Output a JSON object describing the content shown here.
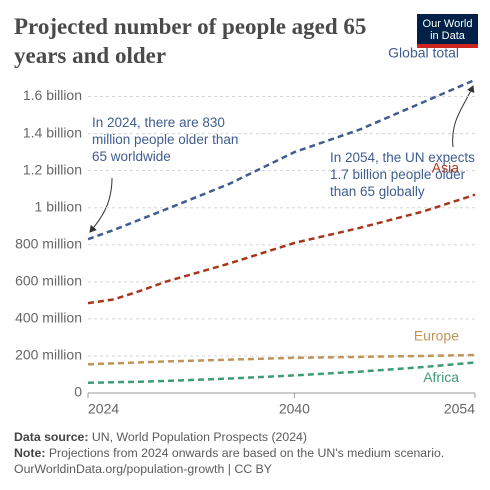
{
  "chart_data": {
    "type": "line",
    "title": "Projected number of people aged 65 years and older",
    "logo": [
      "Our World",
      "in Data"
    ],
    "x": [
      2024,
      2026,
      2028,
      2030,
      2035,
      2040,
      2045,
      2050,
      2054
    ],
    "xlim": [
      2024,
      2054
    ],
    "xticks": [
      2024,
      2040,
      2054
    ],
    "ylim": [
      0,
      1700000000
    ],
    "yticks": [
      0,
      {
        "value": 200000000,
        "label": "200 million"
      },
      {
        "value": 400000000,
        "label": "400 million"
      },
      {
        "value": 600000000,
        "label": "600 million"
      },
      {
        "value": 800000000,
        "label": "800 million"
      },
      {
        "value": 1000000000,
        "label": "1 billion"
      },
      {
        "value": 1200000000,
        "label": "1.2 billion"
      },
      {
        "value": 1400000000,
        "label": "1.4 billion"
      },
      {
        "value": 1600000000,
        "label": "1.6 billion"
      }
    ],
    "grid": true,
    "series": [
      {
        "name": "Global total",
        "color": "#3f5d8f",
        "values": [
          830000000,
          880000000,
          935000000,
          990000000,
          1130000000,
          1300000000,
          1420000000,
          1570000000,
          1690000000
        ]
      },
      {
        "name": "Asia",
        "color": "#a8361a",
        "values": [
          485000000,
          505000000,
          550000000,
          600000000,
          700000000,
          810000000,
          890000000,
          980000000,
          1070000000
        ]
      },
      {
        "name": "Europe",
        "color": "#c09458",
        "values": [
          155000000,
          160000000,
          165000000,
          170000000,
          180000000,
          190000000,
          195000000,
          200000000,
          205000000
        ]
      },
      {
        "name": "Africa",
        "color": "#3d9c72",
        "values": [
          55000000,
          58000000,
          61000000,
          65000000,
          78000000,
          95000000,
          115000000,
          140000000,
          165000000
        ]
      }
    ],
    "annotations": [
      "In 2024, there are 830 million people older than 65 worldwide",
      "In 2054, the UN expects 1.7 billion people older than 65 globally"
    ],
    "source_label": "Data source:",
    "source": "UN, World Population Prospects (2024)",
    "note_label": "Note:",
    "note": "Projections from 2024 onwards are based on the UN's medium scenario.",
    "url": "OurWorldinData.org/population-growth | CC BY"
  }
}
